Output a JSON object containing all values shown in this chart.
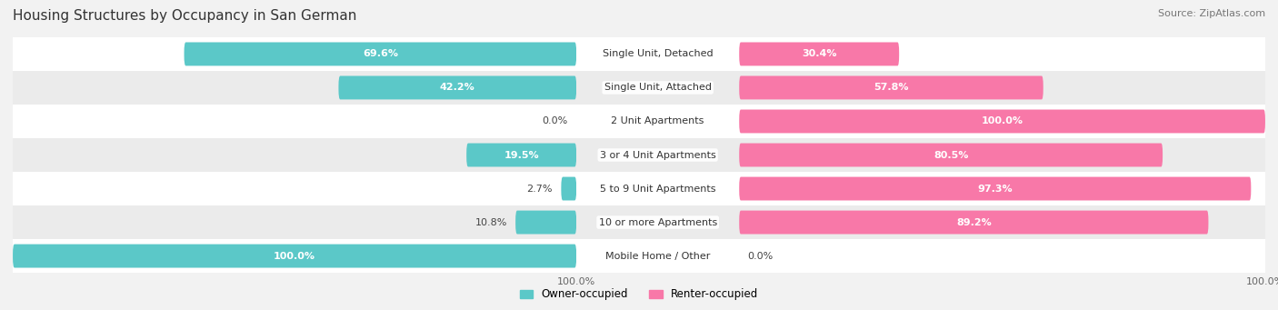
{
  "title": "Housing Structures by Occupancy in San German",
  "source": "Source: ZipAtlas.com",
  "categories": [
    "Single Unit, Detached",
    "Single Unit, Attached",
    "2 Unit Apartments",
    "3 or 4 Unit Apartments",
    "5 to 9 Unit Apartments",
    "10 or more Apartments",
    "Mobile Home / Other"
  ],
  "owner_values": [
    69.6,
    42.2,
    0.0,
    19.5,
    2.7,
    10.8,
    100.0
  ],
  "renter_values": [
    30.4,
    57.8,
    100.0,
    80.5,
    97.3,
    89.2,
    0.0
  ],
  "owner_color": "#5bc8c8",
  "renter_color": "#f878a8",
  "owner_label": "Owner-occupied",
  "renter_label": "Renter-occupied",
  "background_color": "#f2f2f2",
  "row_bg_even": "#ffffff",
  "row_bg_odd": "#ebebeb",
  "title_fontsize": 11,
  "source_fontsize": 8,
  "label_fontsize": 8,
  "value_fontsize": 8,
  "bar_height": 0.7
}
